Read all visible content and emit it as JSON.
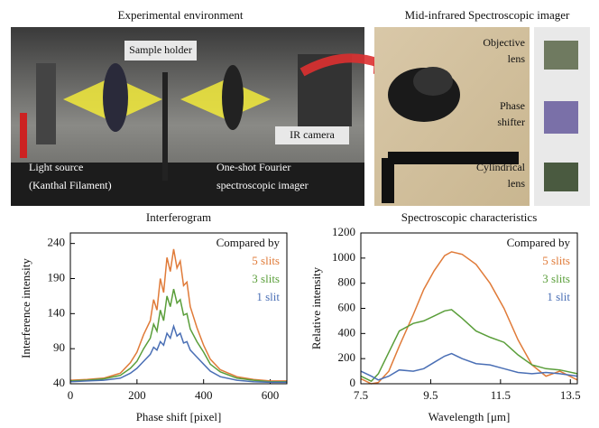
{
  "figure": {
    "left_title": "Experimental environment",
    "right_title": "Mid-infrared Spectroscopic imager",
    "sample_holder": "Sample holder",
    "ir_camera": "IR camera",
    "light_source": [
      "Light source",
      "(Kanthal Filament)"
    ],
    "imager": [
      "One-shot Fourier",
      "spectroscopic imager"
    ],
    "objective": [
      "Objective",
      "lens"
    ],
    "phase": [
      "Phase",
      "shifter"
    ],
    "cylindrical": [
      "Cylindrical",
      "lens"
    ]
  },
  "chart_data": [
    {
      "type": "line",
      "title": "Interferogram",
      "x_label": "Phase shift [pixel]",
      "y_label": "Interference intensity",
      "x": [
        0,
        50,
        100,
        150,
        180,
        200,
        220,
        240,
        250,
        260,
        270,
        280,
        290,
        300,
        310,
        320,
        330,
        340,
        350,
        360,
        380,
        400,
        420,
        450,
        500,
        550,
        600,
        650
      ],
      "series": [
        {
          "name": "5 slits",
          "color": "#e07b39",
          "values": [
            45,
            46,
            48,
            55,
            70,
            85,
            110,
            130,
            160,
            145,
            190,
            170,
            220,
            200,
            232,
            205,
            215,
            180,
            185,
            150,
            120,
            95,
            75,
            60,
            50,
            46,
            44,
            44
          ]
        },
        {
          "name": "3 slits",
          "color": "#5a9e3a",
          "values": [
            44,
            45,
            47,
            52,
            62,
            72,
            90,
            105,
            125,
            115,
            145,
            130,
            165,
            150,
            175,
            155,
            160,
            138,
            140,
            118,
            100,
            85,
            68,
            57,
            48,
            45,
            43,
            43
          ]
        },
        {
          "name": "1 slit",
          "color": "#4a6fb5",
          "values": [
            43,
            44,
            45,
            48,
            55,
            62,
            72,
            82,
            92,
            88,
            100,
            95,
            112,
            105,
            122,
            108,
            112,
            98,
            100,
            88,
            78,
            68,
            58,
            50,
            45,
            43,
            42,
            42
          ]
        }
      ],
      "legend_title": "Compared by",
      "legend": "top-right",
      "xlim": [
        0,
        650
      ],
      "xticks": [
        0,
        200,
        400,
        600
      ],
      "ylim": [
        40,
        255
      ],
      "yticks": [
        40,
        90,
        140,
        190,
        240
      ]
    },
    {
      "type": "line",
      "title": "Spectroscopic characteristics",
      "x_label": "Wavelength [μm]",
      "y_label": "Relative intensity",
      "x": [
        7.5,
        7.8,
        8.0,
        8.3,
        8.6,
        9.0,
        9.3,
        9.6,
        9.9,
        10.1,
        10.4,
        10.8,
        11.2,
        11.6,
        12.0,
        12.4,
        12.8,
        13.2,
        13.7
      ],
      "series": [
        {
          "name": "5 slits",
          "color": "#e07b39",
          "values": [
            40,
            0,
            10,
            100,
            300,
            550,
            750,
            900,
            1020,
            1050,
            1030,
            950,
            800,
            600,
            350,
            150,
            60,
            100,
            30
          ]
        },
        {
          "name": "3 slits",
          "color": "#5a9e3a",
          "values": [
            60,
            20,
            80,
            250,
            420,
            480,
            500,
            540,
            580,
            590,
            520,
            420,
            370,
            330,
            230,
            150,
            120,
            110,
            80
          ]
        },
        {
          "name": "1 slit",
          "color": "#4a6fb5",
          "values": [
            100,
            60,
            30,
            60,
            110,
            100,
            120,
            170,
            220,
            240,
            200,
            160,
            150,
            120,
            90,
            80,
            90,
            80,
            60
          ]
        }
      ],
      "legend_title": "Compared by",
      "legend": "top-right",
      "xlim": [
        7.5,
        13.7
      ],
      "xticks": [
        7.5,
        9.5,
        11.5,
        13.5
      ],
      "ylim": [
        0,
        1200
      ],
      "yticks": [
        0,
        200,
        400,
        600,
        800,
        1000,
        1200
      ]
    }
  ]
}
